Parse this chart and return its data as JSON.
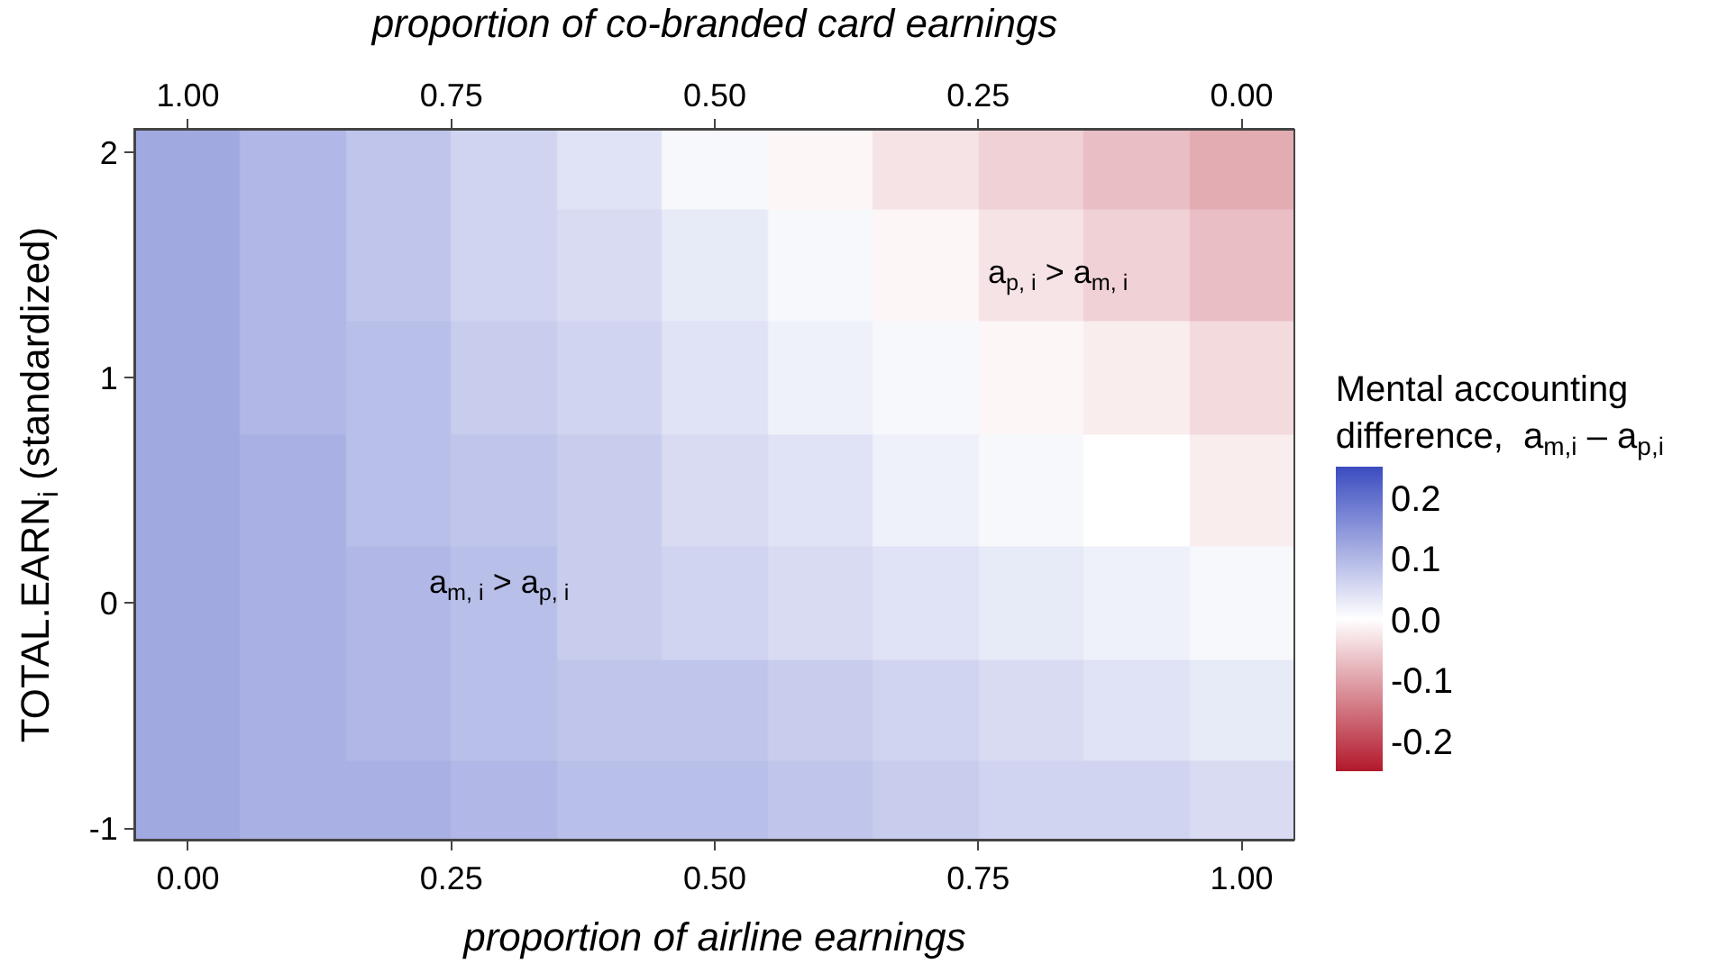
{
  "chart_data": {
    "type": "heatmap",
    "xlabel": "proportion of airline earnings",
    "x2label": "proportion of co-branded card earnings",
    "ylabel": "TOTAL.EARN$_{i}$ (standardized)",
    "clabel": "Mental accounting\ndifference,  a$_{m,i}$ – a$_{p,i}$",
    "x": [
      0,
      0.1,
      0.2,
      0.3,
      0.4,
      0.5,
      0.6,
      0.7,
      0.8,
      0.9,
      1.0
    ],
    "y": [
      2.0,
      1.5,
      1.0,
      0.5,
      0,
      -0.5,
      -0.9
    ],
    "cells": [
      [
        0.12,
        0.1,
        0.08,
        0.06,
        0.04,
        0.01,
        -0.01,
        -0.03,
        -0.05,
        -0.07,
        -0.09
      ],
      [
        0.12,
        0.1,
        0.08,
        0.06,
        0.05,
        0.03,
        0.01,
        -0.01,
        -0.03,
        -0.05,
        -0.07
      ],
      [
        0.12,
        0.1,
        0.09,
        0.07,
        0.06,
        0.04,
        0.02,
        0.01,
        -0.01,
        -0.02,
        -0.04
      ],
      [
        0.12,
        0.11,
        0.09,
        0.08,
        0.07,
        0.05,
        0.04,
        0.02,
        0.01,
        0.0,
        -0.02
      ],
      [
        0.12,
        0.11,
        0.1,
        0.09,
        0.07,
        0.06,
        0.05,
        0.04,
        0.03,
        0.02,
        0.01
      ],
      [
        0.12,
        0.11,
        0.1,
        0.09,
        0.08,
        0.08,
        0.07,
        0.06,
        0.05,
        0.04,
        0.03
      ],
      [
        0.12,
        0.11,
        0.11,
        0.1,
        0.09,
        0.09,
        0.08,
        0.07,
        0.06,
        0.06,
        0.05
      ]
    ],
    "colors": [
      "#b2182b",
      "#ffffff",
      "#3b4cc0"
    ],
    "clim": [
      -0.25,
      0.25
    ],
    "cticks": [
      0.2,
      0.1,
      {
        "value": 0,
        "label": "0.0"
      },
      -0.1,
      -0.2
    ],
    "xlim": [
      -0.05,
      1.05
    ],
    "xticks": [
      {
        "value": 0,
        "label": "0.00"
      },
      {
        "value": 0.25,
        "label": "0.25"
      },
      {
        "value": 0.5,
        "label": "0.50"
      },
      {
        "value": 0.75,
        "label": "0.75"
      },
      {
        "value": 1,
        "label": "1.00"
      }
    ],
    "x2lim": [
      1.05,
      -0.05
    ],
    "x2ticks": [
      {
        "value": 1,
        "label": "1.00"
      },
      {
        "value": 0.75,
        "label": "0.75"
      },
      {
        "value": 0.5,
        "label": "0.50"
      },
      {
        "value": 0.25,
        "label": "0.25"
      },
      {
        "value": 0,
        "label": "0.00"
      }
    ],
    "ylim": [
      -1.05,
      2.1
    ],
    "yticks": [
      -1,
      0,
      1,
      2
    ],
    "annotations": [
      "a$_{m, i}$ > a$_{p, i}$",
      "a$_{p, i}$ > a$_{m, i}$"
    ]
  }
}
